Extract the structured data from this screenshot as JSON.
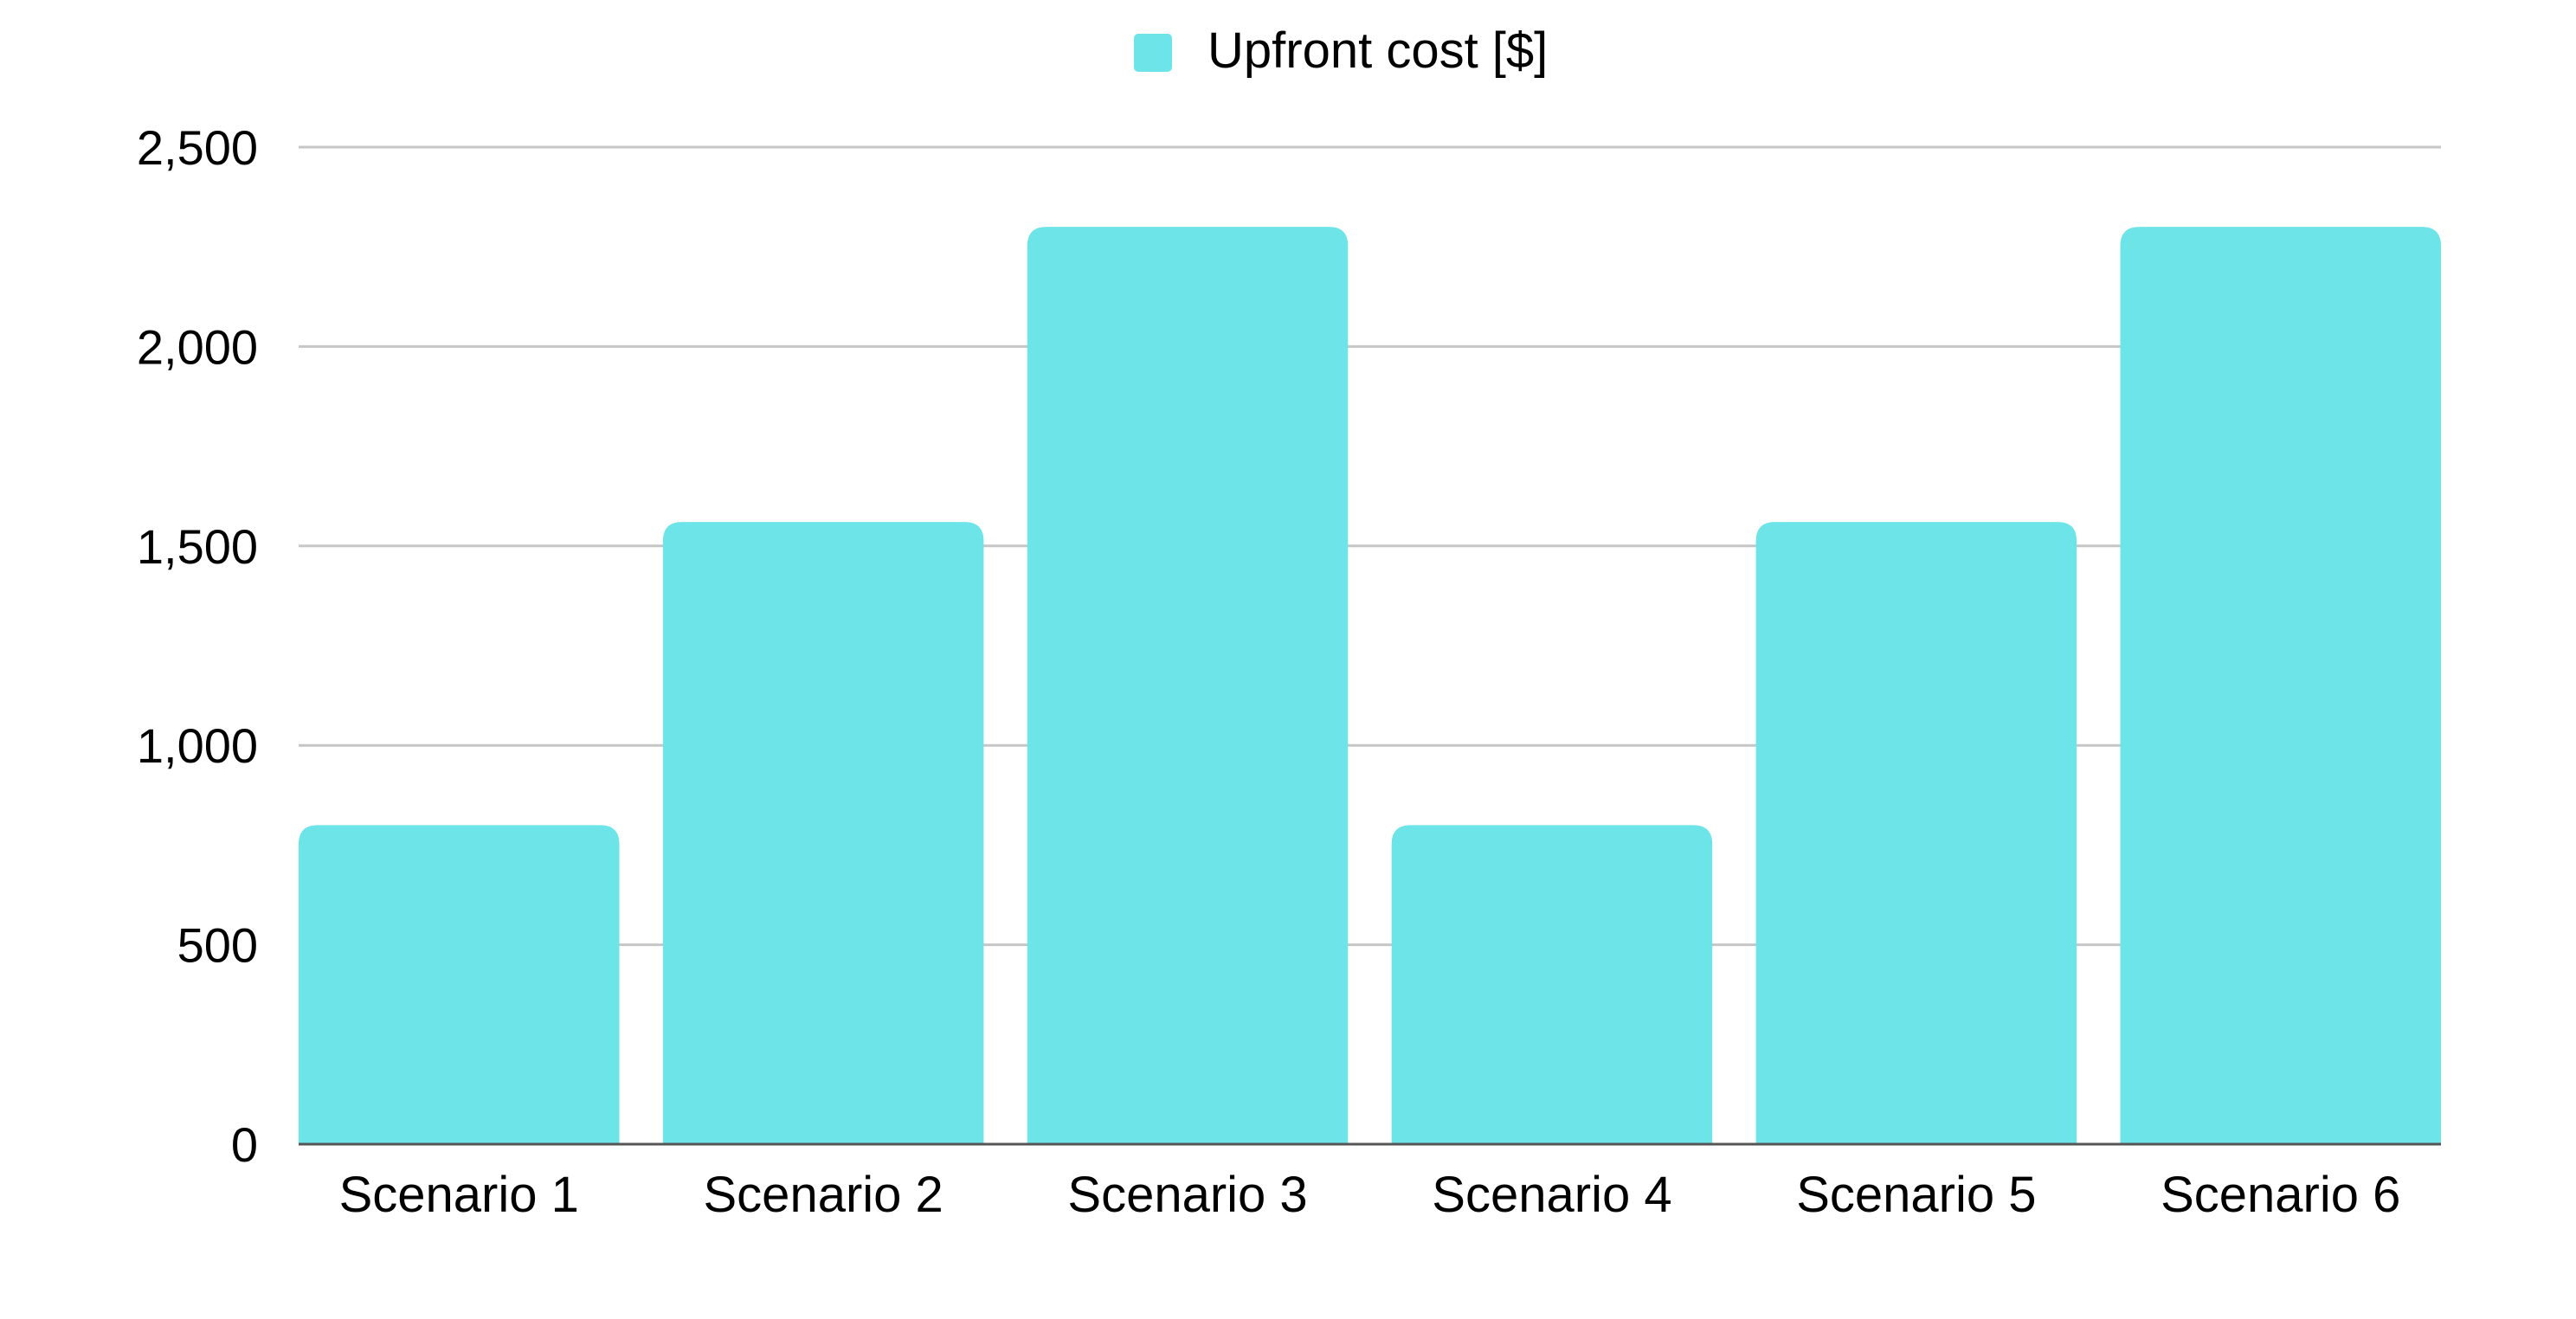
{
  "chart_data": {
    "type": "bar",
    "title": "",
    "xlabel": "",
    "ylabel": "",
    "categories": [
      "Scenario 1",
      "Scenario 2",
      "Scenario 3",
      "Scenario 4",
      "Scenario 5",
      "Scenario 6"
    ],
    "series": [
      {
        "name": "Upfront cost [$]",
        "color": "#6de4e8",
        "values": [
          800,
          1560,
          2300,
          800,
          1560,
          2300
        ]
      }
    ],
    "ylim": [
      0,
      2500
    ],
    "yticks": [
      0,
      500,
      1000,
      1500,
      2000,
      2500
    ],
    "ytick_labels": [
      "0",
      "500",
      "1,000",
      "1,500",
      "2,000",
      "2,500"
    ],
    "grid": true,
    "legend_position": "top-center",
    "colors": {
      "bar": "#6de4e8",
      "grid": "#c6c6c6",
      "axis": "#555555",
      "text": "#000000"
    }
  }
}
